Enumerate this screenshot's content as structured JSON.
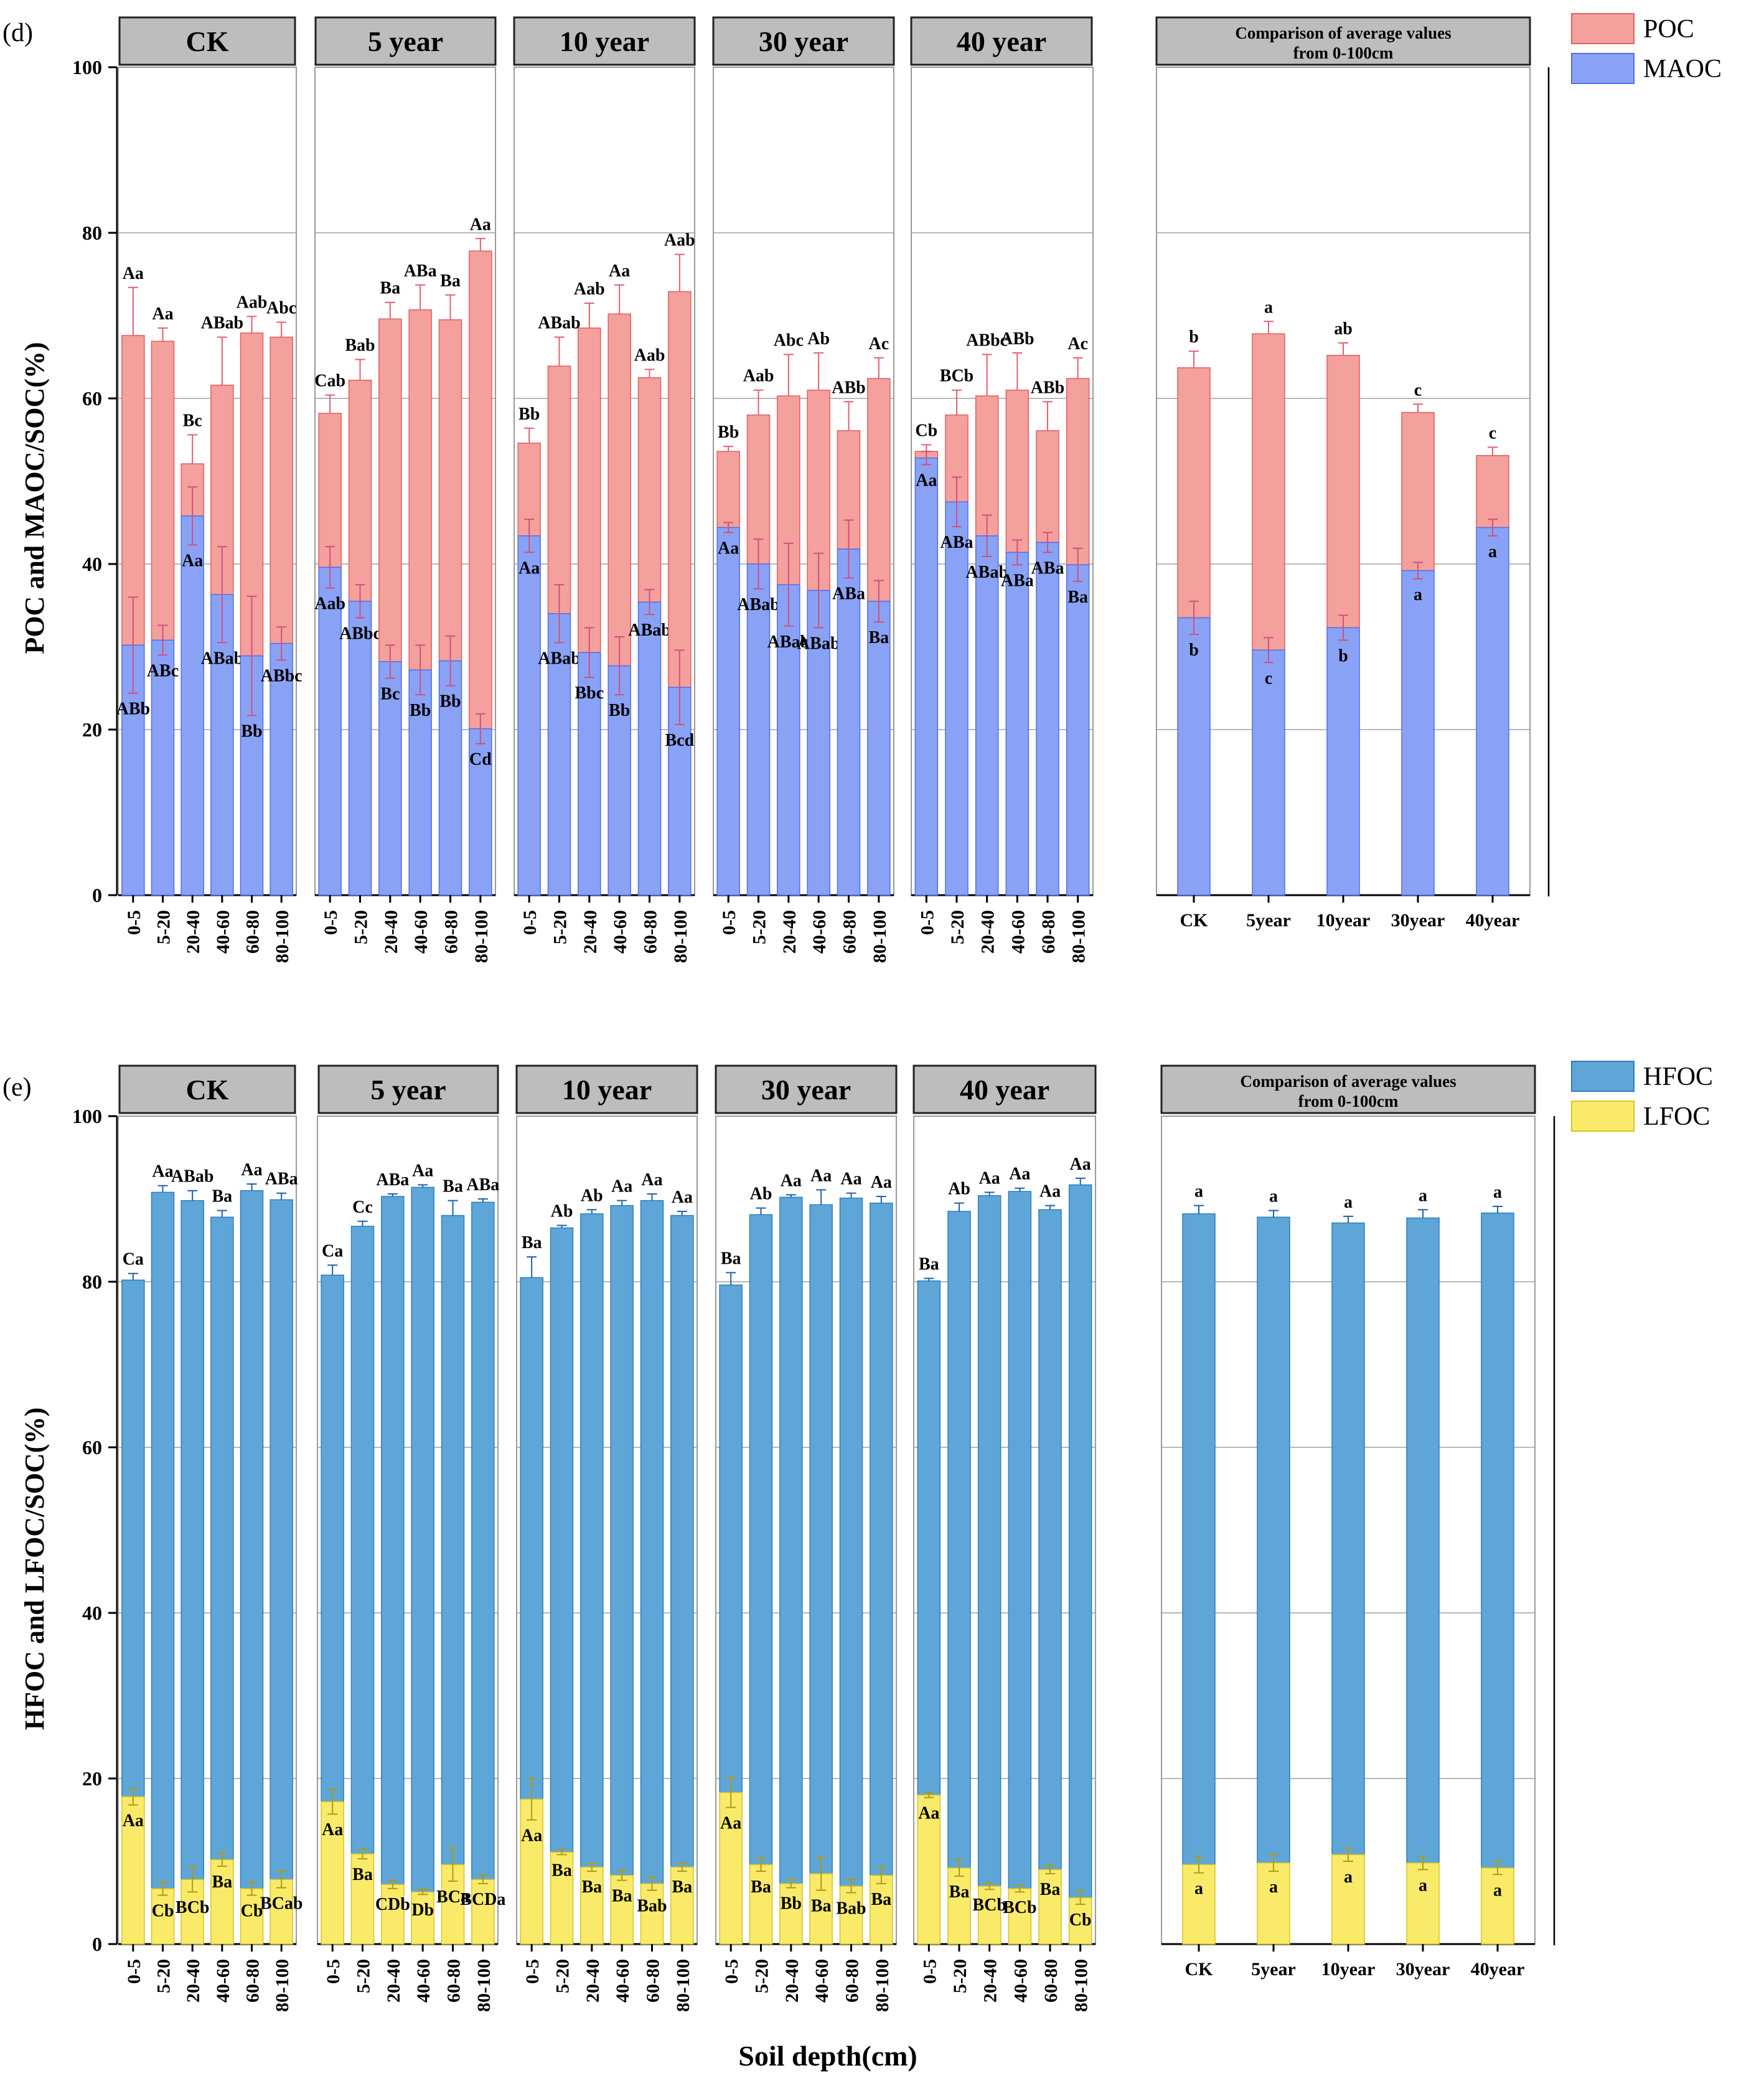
{
  "figure": {
    "xlabel": "Soil depth(cm)"
  },
  "chart_data": [
    {
      "type": "bar",
      "stacked": true,
      "panel_label": "(d)",
      "ylabel": "POC and MAOC/SOC(%)",
      "ylim": [
        0,
        100
      ],
      "yticks": [
        "0",
        "20",
        "40",
        "60",
        "80",
        "100"
      ],
      "grid": true,
      "legend": {
        "position": "top-right",
        "items": [
          {
            "name": "POC",
            "color": "#f4a09c",
            "edge": "#e06060"
          },
          {
            "name": "MAOC",
            "color": "#8aa2f5",
            "edge": "#4e6fe8"
          }
        ]
      },
      "bottom_series": "MAOC",
      "top_series": "POC",
      "groups": [
        {
          "title": "CK",
          "categories": [
            "0-5",
            "5-20",
            "20-40",
            "40-60",
            "60-80",
            "80-100"
          ],
          "bottom": [
            30.2,
            30.8,
            45.8,
            36.3,
            28.9,
            30.4
          ],
          "bottom_err": [
            5.8,
            1.8,
            3.5,
            5.8,
            7.2,
            2.0
          ],
          "bottom_labels": [
            "ABb",
            "ABc",
            "Aa",
            "ABab",
            "Bb",
            "ABbc"
          ],
          "total": [
            67.6,
            66.9,
            52.1,
            61.6,
            67.9,
            67.4
          ],
          "total_err": [
            5.8,
            1.6,
            3.5,
            5.8,
            2.0,
            1.8
          ],
          "top_labels": [
            "Aa",
            "Aa",
            "Bc",
            "ABab",
            "Aab",
            "Abc"
          ]
        },
        {
          "title": "5 year",
          "categories": [
            "0-5",
            "5-20",
            "20-40",
            "40-60",
            "60-80",
            "80-100"
          ],
          "bottom": [
            39.6,
            35.5,
            28.2,
            27.2,
            28.3,
            20.1
          ],
          "bottom_err": [
            2.5,
            2.0,
            2.0,
            3.0,
            3.0,
            1.8
          ],
          "bottom_labels": [
            "Aab",
            "ABbc",
            "Bc",
            "Bb",
            "Bb",
            "Cd"
          ],
          "total": [
            58.2,
            62.2,
            69.6,
            70.7,
            69.5,
            77.8
          ],
          "total_err": [
            2.2,
            2.5,
            2.0,
            3.0,
            3.0,
            1.5
          ],
          "top_labels": [
            "Cab",
            "Bab",
            "Ba",
            "ABa",
            "Ba",
            "Aa"
          ]
        },
        {
          "title": "10 year",
          "categories": [
            "0-5",
            "5-20",
            "20-40",
            "40-60",
            "60-80",
            "80-100"
          ],
          "bottom": [
            43.4,
            34.0,
            29.3,
            27.7,
            35.4,
            25.1
          ],
          "bottom_err": [
            2.0,
            3.5,
            3.0,
            3.5,
            1.5,
            4.5
          ],
          "bottom_labels": [
            "Aa",
            "ABab",
            "Bbc",
            "Bb",
            "ABab",
            "Bcd"
          ],
          "total": [
            54.6,
            63.9,
            68.5,
            70.2,
            62.5,
            72.9
          ],
          "total_err": [
            1.8,
            3.5,
            3.0,
            3.5,
            1.0,
            4.5
          ],
          "top_labels": [
            "Bb",
            "ABab",
            "Aab",
            "Aa",
            "Aab",
            "Aab"
          ]
        },
        {
          "title": "30 year",
          "categories": [
            "0-5",
            "5-20",
            "20-40",
            "40-60",
            "60-80",
            "80-100"
          ],
          "bottom": [
            44.4,
            40.0,
            37.5,
            36.8,
            41.8,
            35.5
          ],
          "bottom_err": [
            0.6,
            3.0,
            5.0,
            4.5,
            3.5,
            2.5
          ],
          "bottom_labels": [
            "Aa",
            "ABab",
            "ABab",
            "ABab",
            "ABa",
            "Ba"
          ],
          "total": [
            53.6,
            58.0,
            60.3,
            61.0,
            56.1,
            62.4
          ],
          "total_err": [
            0.6,
            3.0,
            5.0,
            4.5,
            3.5,
            2.5
          ],
          "top_labels": [
            "Bb",
            "Aab",
            "Abc",
            "Ab",
            "ABb",
            "Ac"
          ]
        },
        {
          "title": "40 year",
          "categories": [
            "0-5",
            "5-20",
            "20-40",
            "40-60",
            "60-80",
            "80-100"
          ],
          "bottom": [
            52.8,
            47.5,
            43.4,
            41.4,
            42.6,
            39.9
          ],
          "bottom_err": [
            0.8,
            3.0,
            2.5,
            1.5,
            1.2,
            2.0
          ],
          "bottom_labels": [
            "Aa",
            "ABa",
            "ABab",
            "ABa",
            "ABa",
            "Ba"
          ],
          "total": [
            53.6,
            58.0,
            60.3,
            61.0,
            56.1,
            62.4
          ],
          "total_err": [
            0.8,
            3.0,
            5.0,
            4.5,
            3.5,
            2.5
          ],
          "top_labels": [
            "Cb",
            "BCb",
            "ABbc",
            "ABb",
            "ABb",
            "Ac"
          ]
        },
        {
          "title": "Comparison of average values from 0-100cm",
          "categories": [
            "CK",
            "5year",
            "10year",
            "30year",
            "40year"
          ],
          "bottom": [
            33.5,
            29.6,
            32.3,
            39.2,
            44.4
          ],
          "bottom_err": [
            2.0,
            1.5,
            1.5,
            1.0,
            1.0
          ],
          "bottom_labels": [
            "b",
            "c",
            "b",
            "a",
            "a"
          ],
          "total": [
            63.7,
            67.8,
            65.2,
            58.3,
            53.1
          ],
          "total_err": [
            2.0,
            1.5,
            1.5,
            1.0,
            1.0
          ],
          "top_labels": [
            "b",
            "a",
            "ab",
            "c",
            "c"
          ]
        }
      ]
    },
    {
      "type": "bar",
      "stacked": true,
      "panel_label": "(e)",
      "ylabel": "HFOC and LFOC/SOC(%)",
      "ylim": [
        0,
        100
      ],
      "yticks": [
        "0",
        "20",
        "40",
        "60",
        "80",
        "100"
      ],
      "grid": true,
      "legend": {
        "position": "top-right",
        "items": [
          {
            "name": "HFOC",
            "color": "#5fa6d8",
            "edge": "#2f7fba"
          },
          {
            "name": "LFOC",
            "color": "#f9ea6a",
            "edge": "#d8c420"
          }
        ]
      },
      "bottom_series": "LFOC",
      "top_series": "HFOC",
      "groups": [
        {
          "title": "CK",
          "categories": [
            "0-5",
            "5-20",
            "20-40",
            "40-60",
            "60-80",
            "80-100"
          ],
          "bottom": [
            17.8,
            6.7,
            7.8,
            10.2,
            6.7,
            7.8
          ],
          "bottom_err": [
            1.0,
            0.8,
            1.5,
            0.8,
            0.8,
            1.0
          ],
          "bottom_labels": [
            "Aa",
            "Cb",
            "BCb",
            "Ba",
            "Cb",
            "BCab"
          ],
          "total": [
            80.2,
            90.8,
            89.8,
            87.8,
            91.0,
            89.9
          ],
          "total_err": [
            0.8,
            0.8,
            1.2,
            0.8,
            0.8,
            0.8
          ],
          "top_labels": [
            "Ca",
            "Aa",
            "ABab",
            "Ba",
            "Aa",
            "ABa"
          ]
        },
        {
          "title": "5 year",
          "categories": [
            "0-5",
            "5-20",
            "20-40",
            "40-60",
            "60-80",
            "80-100"
          ],
          "bottom": [
            17.2,
            10.9,
            7.2,
            6.3,
            9.6,
            7.8
          ],
          "bottom_err": [
            1.5,
            0.6,
            0.5,
            0.3,
            2.0,
            0.5
          ],
          "bottom_labels": [
            "Aa",
            "Ba",
            "CDb",
            "Db",
            "BCa",
            "BCDa"
          ],
          "total": [
            80.8,
            86.7,
            90.3,
            91.4,
            88.0,
            89.6
          ],
          "total_err": [
            1.2,
            0.6,
            0.3,
            0.3,
            1.8,
            0.4
          ],
          "top_labels": [
            "Ca",
            "Cc",
            "ABa",
            "Aa",
            "Ba",
            "ABa"
          ]
        },
        {
          "title": "10 year",
          "categories": [
            "0-5",
            "5-20",
            "20-40",
            "40-60",
            "60-80",
            "80-100"
          ],
          "bottom": [
            17.5,
            11.1,
            9.3,
            8.3,
            7.3,
            9.3
          ],
          "bottom_err": [
            2.5,
            0.3,
            0.5,
            0.6,
            0.8,
            0.5
          ],
          "bottom_labels": [
            "Aa",
            "Ba",
            "Ba",
            "Ba",
            "Bab",
            "Ba"
          ],
          "total": [
            80.5,
            86.5,
            88.2,
            89.2,
            89.8,
            88.0
          ],
          "total_err": [
            2.5,
            0.3,
            0.5,
            0.6,
            0.8,
            0.5
          ],
          "top_labels": [
            "Ba",
            "Ab",
            "Ab",
            "Aa",
            "Aa",
            "Aa"
          ]
        },
        {
          "title": "30 year",
          "categories": [
            "0-5",
            "5-20",
            "20-40",
            "40-60",
            "60-80",
            "80-100"
          ],
          "bottom": [
            18.3,
            9.6,
            7.3,
            8.5,
            7.0,
            8.3
          ],
          "bottom_err": [
            1.8,
            0.8,
            0.5,
            2.0,
            0.8,
            1.0
          ],
          "bottom_labels": [
            "Aa",
            "Ba",
            "Bb",
            "Ba",
            "Bab",
            "Ba"
          ],
          "total": [
            79.6,
            88.1,
            90.2,
            89.3,
            90.1,
            89.5
          ],
          "total_err": [
            1.5,
            0.8,
            0.3,
            1.8,
            0.6,
            0.8
          ],
          "top_labels": [
            "Ba",
            "Ab",
            "Aa",
            "Aa",
            "Aa",
            "Aa"
          ]
        },
        {
          "title": "40 year",
          "categories": [
            "0-5",
            "5-20",
            "20-40",
            "40-60",
            "60-80",
            "80-100"
          ],
          "bottom": [
            18.0,
            9.2,
            7.0,
            6.7,
            9.0,
            5.6
          ],
          "bottom_err": [
            0.3,
            1.0,
            0.4,
            0.4,
            0.5,
            0.8
          ],
          "bottom_labels": [
            "Aa",
            "Ba",
            "BCb",
            "BCb",
            "Ba",
            "Cb"
          ],
          "total": [
            80.1,
            88.5,
            90.4,
            90.9,
            88.7,
            91.7
          ],
          "total_err": [
            0.3,
            1.0,
            0.4,
            0.4,
            0.5,
            0.8
          ],
          "top_labels": [
            "Ba",
            "Ab",
            "Aa",
            "Aa",
            "Aa",
            "Aa"
          ]
        },
        {
          "title": "Comparison of average values from 0-100cm",
          "categories": [
            "CK",
            "5year",
            "10year",
            "30year",
            "40year"
          ],
          "bottom": [
            9.6,
            9.8,
            10.8,
            9.8,
            9.2
          ],
          "bottom_err": [
            1.0,
            1.0,
            0.8,
            0.8,
            0.8
          ],
          "bottom_labels": [
            "a",
            "a",
            "a",
            "a",
            "a"
          ],
          "total": [
            88.2,
            87.8,
            87.1,
            87.7,
            88.3
          ],
          "total_err": [
            1.0,
            0.8,
            0.8,
            1.0,
            0.8
          ],
          "top_labels": [
            "a",
            "a",
            "a",
            "a",
            "a"
          ]
        }
      ]
    }
  ]
}
